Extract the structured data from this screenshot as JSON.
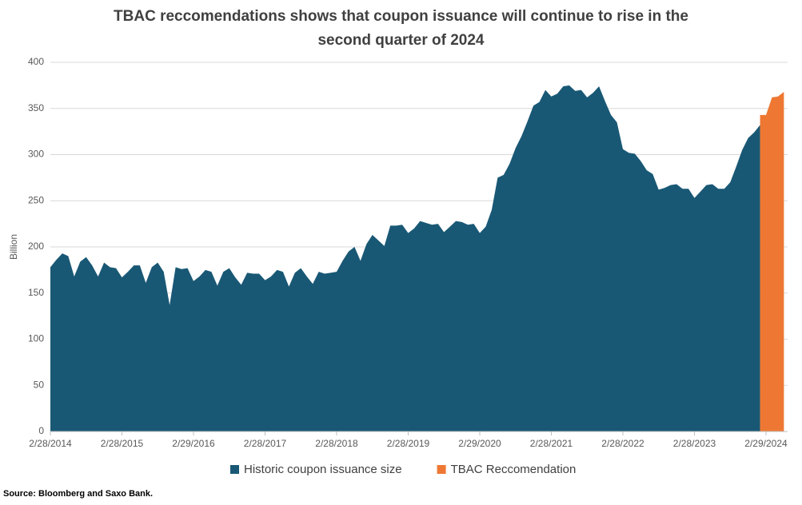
{
  "chart_data": {
    "type": "area",
    "title": "TBAC reccomendations shows that coupon issuance will continue to rise in the second quarter of 2024",
    "ylabel": "Billion",
    "source": "Source: Bloomberg and Saxo Bank.",
    "categories": [
      "2/28/2014",
      null,
      null,
      null,
      null,
      null,
      null,
      null,
      null,
      null,
      null,
      null,
      "2/28/2015",
      null,
      null,
      null,
      null,
      null,
      null,
      null,
      null,
      null,
      null,
      null,
      "2/29/2016",
      null,
      null,
      null,
      null,
      null,
      null,
      null,
      null,
      null,
      null,
      null,
      "2/28/2017",
      null,
      null,
      null,
      null,
      null,
      null,
      null,
      null,
      null,
      null,
      null,
      "2/28/2018",
      null,
      null,
      null,
      null,
      null,
      null,
      null,
      null,
      null,
      null,
      null,
      "2/28/2019",
      null,
      null,
      null,
      null,
      null,
      null,
      null,
      null,
      null,
      null,
      null,
      "2/29/2020",
      null,
      null,
      null,
      null,
      null,
      null,
      null,
      null,
      null,
      null,
      null,
      "2/28/2021",
      null,
      null,
      null,
      null,
      null,
      null,
      null,
      null,
      null,
      null,
      null,
      "2/28/2022",
      null,
      null,
      null,
      null,
      null,
      null,
      null,
      null,
      null,
      null,
      null,
      "2/28/2023",
      null,
      null,
      null,
      null,
      null,
      null,
      null,
      null,
      null,
      null,
      null,
      "2/29/2024",
      null,
      null,
      null
    ],
    "series": [
      {
        "name": "Historic coupon issuance size",
        "color": "#195875",
        "values": [
          178,
          186,
          193,
          190,
          168,
          184,
          189,
          180,
          168,
          183,
          178,
          177,
          167,
          173,
          180,
          180,
          161,
          178,
          183,
          173,
          137,
          178,
          176,
          177,
          163,
          168,
          175,
          173,
          158,
          173,
          177,
          167,
          159,
          172,
          171,
          171,
          164,
          168,
          175,
          173,
          157,
          172,
          177,
          168,
          160,
          173,
          171,
          172,
          173,
          185,
          195,
          200,
          185,
          203,
          213,
          207,
          201,
          223,
          223,
          224,
          215,
          220,
          228,
          226,
          224,
          225,
          216,
          222,
          228,
          227,
          224,
          225,
          215,
          222,
          240,
          275,
          278,
          290,
          307,
          320,
          336,
          353,
          357,
          370,
          363,
          366,
          374,
          375,
          369,
          370,
          362,
          367,
          374,
          358,
          343,
          335,
          306,
          302,
          301,
          293,
          283,
          279,
          262,
          264,
          267,
          268,
          263,
          263,
          253,
          260,
          267,
          268,
          263,
          263,
          270,
          287,
          305,
          318,
          324,
          332,
          null,
          null,
          null,
          null
        ]
      },
      {
        "name": "TBAC Reccomendation",
        "color": "#ee7833",
        "values": [
          null,
          null,
          null,
          null,
          null,
          null,
          null,
          null,
          null,
          null,
          null,
          null,
          null,
          null,
          null,
          null,
          null,
          null,
          null,
          null,
          null,
          null,
          null,
          null,
          null,
          null,
          null,
          null,
          null,
          null,
          null,
          null,
          null,
          null,
          null,
          null,
          null,
          null,
          null,
          null,
          null,
          null,
          null,
          null,
          null,
          null,
          null,
          null,
          null,
          null,
          null,
          null,
          null,
          null,
          null,
          null,
          null,
          null,
          null,
          null,
          null,
          null,
          null,
          null,
          null,
          null,
          null,
          null,
          null,
          null,
          null,
          null,
          null,
          null,
          null,
          null,
          null,
          null,
          null,
          null,
          null,
          null,
          null,
          null,
          null,
          null,
          null,
          null,
          null,
          null,
          null,
          null,
          null,
          null,
          null,
          null,
          null,
          null,
          null,
          null,
          null,
          null,
          null,
          null,
          null,
          null,
          null,
          null,
          null,
          null,
          null,
          null,
          null,
          null,
          null,
          null,
          null,
          null,
          null,
          343,
          343,
          362,
          363,
          368
        ]
      }
    ],
    "ylim": [
      0,
      400
    ],
    "yticks": [
      0,
      50,
      100,
      150,
      200,
      250,
      300,
      350,
      400
    ],
    "grid": true,
    "legend": "bottom"
  }
}
